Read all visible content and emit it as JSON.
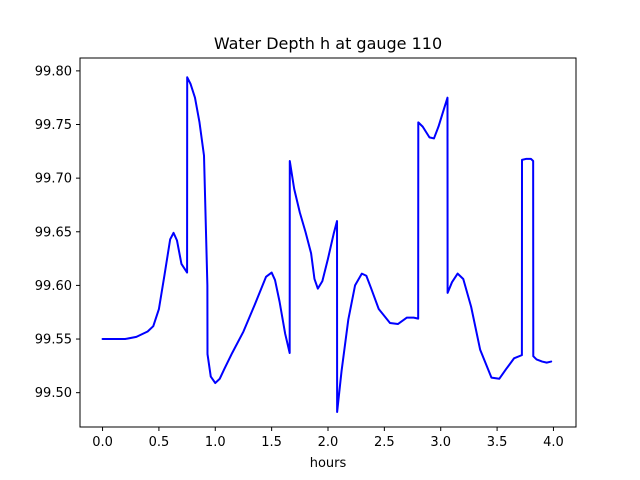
{
  "chart_data": {
    "type": "line",
    "title": "Water Depth h at gauge 110",
    "xlabel": "hours",
    "ylabel": "",
    "xlim": [
      -0.2,
      4.2
    ],
    "ylim": [
      99.468,
      99.812
    ],
    "x_ticks": [
      0.0,
      0.5,
      1.0,
      1.5,
      2.0,
      2.5,
      3.0,
      3.5,
      4.0
    ],
    "x_tick_labels": [
      "0.0",
      "0.5",
      "1.0",
      "1.5",
      "2.0",
      "2.5",
      "3.0",
      "3.5",
      "4.0"
    ],
    "y_ticks": [
      99.5,
      99.55,
      99.6,
      99.65,
      99.7,
      99.75,
      99.8
    ],
    "y_tick_labels": [
      "99.50",
      "99.55",
      "99.60",
      "99.65",
      "99.70",
      "99.75",
      "99.80"
    ],
    "grid": false,
    "legend": "none",
    "series": [
      {
        "color": "#0000ff",
        "x": [
          0.0,
          0.1,
          0.2,
          0.3,
          0.4,
          0.45,
          0.5,
          0.55,
          0.6,
          0.63,
          0.66,
          0.7,
          0.75,
          0.751,
          0.78,
          0.82,
          0.86,
          0.9,
          0.93,
          0.931,
          0.96,
          1.0,
          1.04,
          1.08,
          1.15,
          1.25,
          1.35,
          1.45,
          1.5,
          1.53,
          1.57,
          1.62,
          1.66,
          1.661,
          1.7,
          1.75,
          1.8,
          1.85,
          1.88,
          1.91,
          1.95,
          2.0,
          2.05,
          2.08,
          2.081,
          2.12,
          2.18,
          2.24,
          2.3,
          2.34,
          2.38,
          2.45,
          2.55,
          2.62,
          2.7,
          2.76,
          2.8,
          2.801,
          2.84,
          2.9,
          2.94,
          2.98,
          3.03,
          3.06,
          3.061,
          3.1,
          3.15,
          3.2,
          3.27,
          3.35,
          3.45,
          3.52,
          3.58,
          3.65,
          3.72,
          3.721,
          3.76,
          3.8,
          3.82,
          3.821,
          3.85,
          3.9,
          3.94,
          3.98
        ],
        "y": [
          99.55,
          99.55,
          99.55,
          99.552,
          99.557,
          99.562,
          99.578,
          99.61,
          99.643,
          99.649,
          99.642,
          99.62,
          99.612,
          99.794,
          99.788,
          99.775,
          99.752,
          99.721,
          99.6,
          99.536,
          99.515,
          99.509,
          99.513,
          99.522,
          99.537,
          99.557,
          99.582,
          99.608,
          99.612,
          99.605,
          99.585,
          99.555,
          99.537,
          99.716,
          99.69,
          99.668,
          99.65,
          99.63,
          99.606,
          99.597,
          99.604,
          99.625,
          99.648,
          99.66,
          99.482,
          99.52,
          99.568,
          99.6,
          99.611,
          99.609,
          99.598,
          99.578,
          99.565,
          99.564,
          99.57,
          99.57,
          99.569,
          99.752,
          99.748,
          99.738,
          99.737,
          99.748,
          99.765,
          99.775,
          99.593,
          99.603,
          99.611,
          99.606,
          99.58,
          99.54,
          99.514,
          99.513,
          99.522,
          99.532,
          99.535,
          99.717,
          99.718,
          99.718,
          99.716,
          99.534,
          99.531,
          99.529,
          99.528,
          99.529
        ]
      }
    ]
  }
}
